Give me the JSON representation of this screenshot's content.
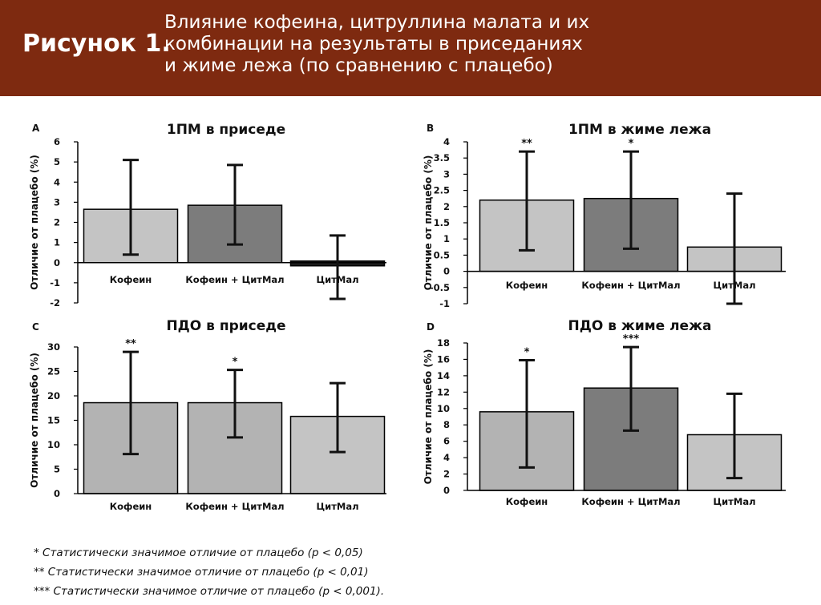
{
  "header": {
    "figure_label": "Рисунок 1.",
    "title_lines": [
      "Влияние кофеина, цитруллина малата и их",
      "комбинации на результаты в приседаниях",
      "и жиме лежа (по сравнению с плацебо)"
    ]
  },
  "colors": {
    "banner": "#7e2a10",
    "light": "#c4c4c4",
    "medium": "#b3b3b3",
    "dark": "#7c7c7c",
    "negative": "#1a1a1a"
  },
  "chart_data": [
    {
      "panel": "A",
      "type": "bar",
      "title": "1ПМ в приседе",
      "ylabel": "Отличие от плацебо (%)",
      "categories": [
        "Кофеин",
        "Кофеин + ЦитМал",
        "ЦитМал"
      ],
      "values": [
        2.65,
        2.85,
        -0.15
      ],
      "error_low": [
        0.4,
        0.9,
        -1.8
      ],
      "error_high": [
        5.1,
        4.85,
        1.35
      ],
      "significance": [
        "",
        "",
        ""
      ],
      "ylim": [
        -2,
        6
      ],
      "yticks": [
        -2,
        -1,
        0,
        1,
        2,
        3,
        4,
        5,
        6
      ],
      "ytick_labels": [
        "-2",
        "-1",
        "0",
        "1",
        "2",
        "3",
        "4",
        "5",
        "6"
      ],
      "bar_colors": [
        "#c4c4c4",
        "#7c7c7c",
        "#1a1a1a"
      ]
    },
    {
      "panel": "B",
      "type": "bar",
      "title": "1ПМ в жиме лежа",
      "ylabel": "Отличие от плацебо (%)",
      "categories": [
        "Кофеин",
        "Кофеин + ЦитМал",
        "ЦитМал"
      ],
      "values": [
        2.2,
        2.25,
        0.75
      ],
      "error_low": [
        0.65,
        0.7,
        -1.0
      ],
      "error_high": [
        3.7,
        3.7,
        2.4
      ],
      "significance": [
        "**",
        "*",
        ""
      ],
      "ylim": [
        -1,
        4
      ],
      "yticks": [
        -1,
        -0.5,
        0,
        0.5,
        1,
        1.5,
        2,
        2.5,
        3,
        3.5,
        4
      ],
      "ytick_labels": [
        "-1",
        "-0.5",
        "0",
        "0.5",
        "1",
        "1.5",
        "2",
        "2.5",
        "3",
        "3.5",
        "4"
      ],
      "bar_colors": [
        "#c4c4c4",
        "#7c7c7c",
        "#c4c4c4"
      ]
    },
    {
      "panel": "C",
      "type": "bar",
      "title": "ПДО в приседе",
      "ylabel": "Отличие от плацебо (%)",
      "categories": [
        "Кофеин",
        "Кофеин + ЦитМал",
        "ЦитМал"
      ],
      "values": [
        18.6,
        18.6,
        15.8
      ],
      "error_low": [
        8.1,
        11.5,
        8.5
      ],
      "error_high": [
        29.0,
        25.3,
        22.6
      ],
      "significance": [
        "**",
        "*",
        ""
      ],
      "ylim": [
        0,
        30
      ],
      "yticks": [
        0,
        5,
        10,
        15,
        20,
        25,
        30
      ],
      "ytick_labels": [
        "0",
        "5",
        "10",
        "15",
        "20",
        "25",
        "30"
      ],
      "bar_colors": [
        "#b3b3b3",
        "#b3b3b3",
        "#c4c4c4"
      ]
    },
    {
      "panel": "D",
      "type": "bar",
      "title": "ПДО в жиме лежа",
      "ylabel": "Отличие от плацебо (%)",
      "categories": [
        "Кофеин",
        "Кофеин + ЦитМал",
        "ЦитМал"
      ],
      "values": [
        9.6,
        12.5,
        6.8
      ],
      "error_low": [
        2.8,
        7.3,
        1.5
      ],
      "error_high": [
        15.9,
        17.5,
        11.8
      ],
      "significance": [
        "*",
        "***",
        ""
      ],
      "ylim": [
        0,
        18
      ],
      "yticks": [
        0,
        2,
        4,
        6,
        8,
        10,
        12,
        14,
        16,
        18
      ],
      "ytick_labels": [
        "0",
        "2",
        "4",
        "6",
        "8",
        "10",
        "12",
        "14",
        "16",
        "18"
      ],
      "bar_colors": [
        "#b3b3b3",
        "#7c7c7c",
        "#c4c4c4"
      ]
    }
  ],
  "footnotes": [
    "* Статистически значимое отличие от плацебо (p < 0,05)",
    "** Статистически значимое отличие от плацебо (p < 0,01)",
    "*** Статистически значимое отличие от плацебо (p < 0,001)."
  ]
}
